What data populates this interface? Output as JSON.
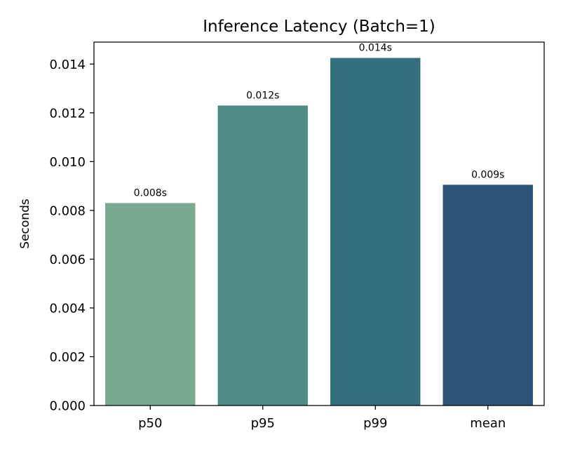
{
  "chart_data": {
    "type": "bar",
    "title": "Inference Latency (Batch=1)",
    "xlabel": "",
    "ylabel": "Seconds",
    "categories": [
      "p50",
      "p95",
      "p99",
      "mean"
    ],
    "values": [
      0.0083,
      0.0123,
      0.01425,
      0.00905
    ],
    "data_labels": [
      "0.008s",
      "0.012s",
      "0.014s",
      "0.009s"
    ],
    "colors": [
      "#78aa91",
      "#4e8b85",
      "#336f7d",
      "#2e5478"
    ],
    "ylim": [
      0,
      0.0149
    ],
    "yticks": [
      0.0,
      0.002,
      0.004,
      0.006,
      0.008,
      0.01,
      0.012,
      0.014
    ],
    "ytick_labels": [
      "0.000",
      "0.002",
      "0.004",
      "0.006",
      "0.008",
      "0.010",
      "0.012",
      "0.014"
    ],
    "grid": false,
    "legend": "none"
  }
}
